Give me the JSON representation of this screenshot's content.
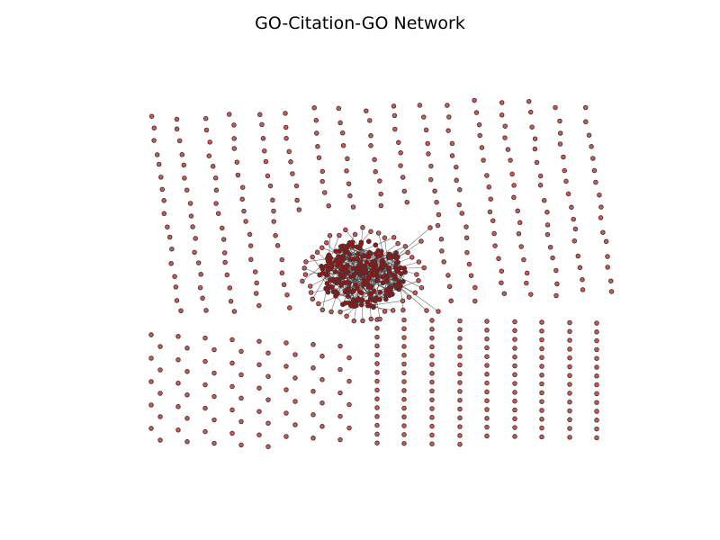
{
  "figure": {
    "title": "GO-Citation-GO Network"
  },
  "style": {
    "background": "#ffffff",
    "node_fill": "#d9534f",
    "node_stroke": "#3a3a3a",
    "edge_color": "#333333",
    "hub_fill": "#a01010"
  }
}
